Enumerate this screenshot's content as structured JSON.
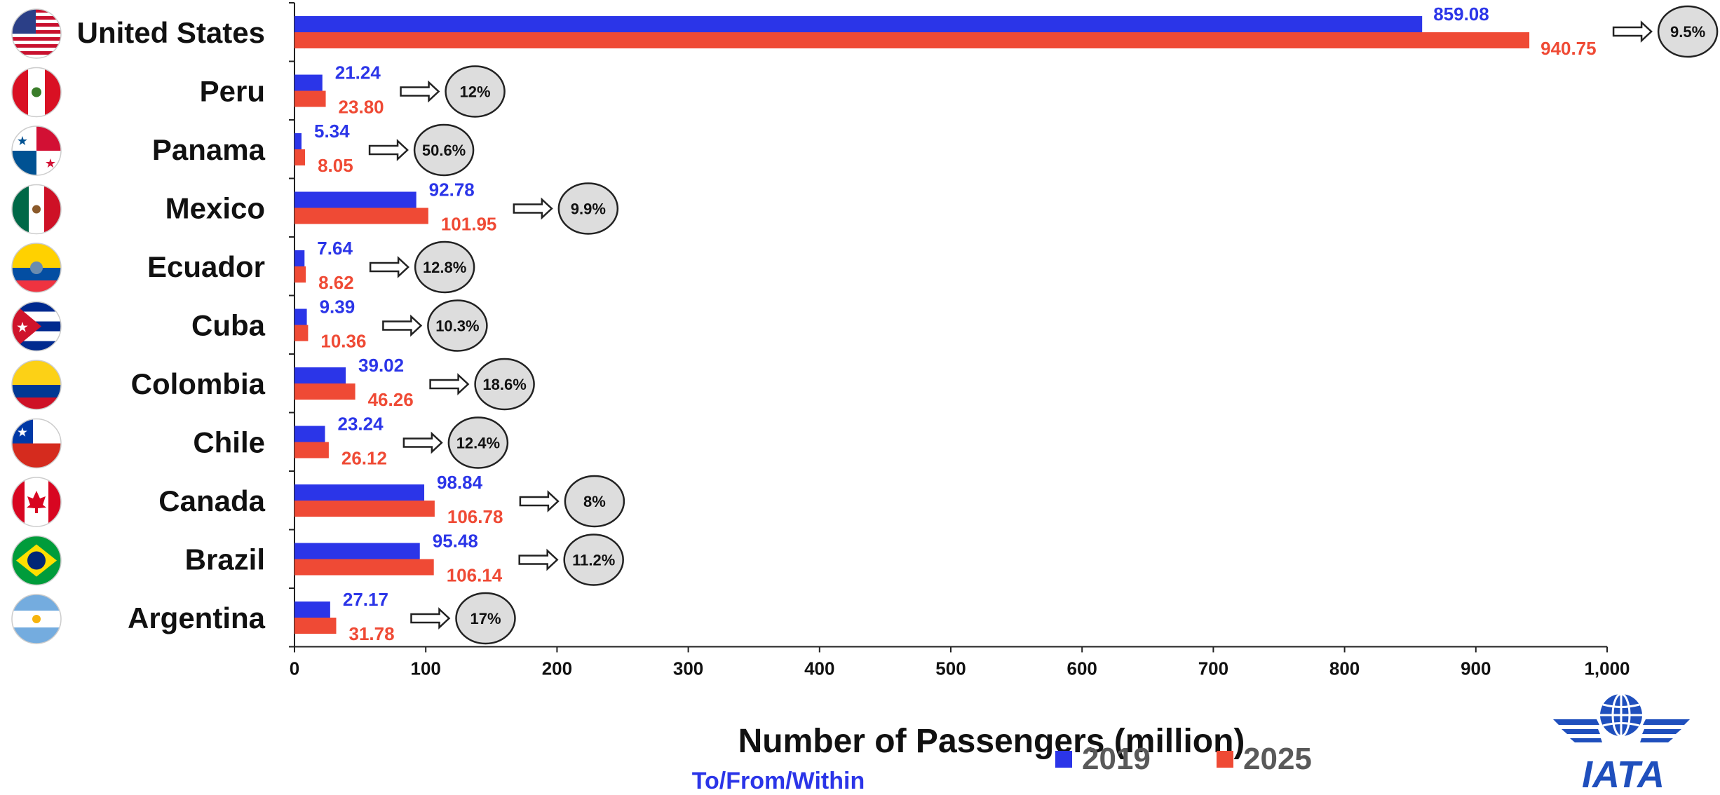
{
  "chart_data": {
    "type": "bar",
    "orientation": "horizontal",
    "categories": [
      "United States",
      "Peru",
      "Panama",
      "Mexico",
      "Ecuador",
      "Cuba",
      "Colombia",
      "Chile",
      "Canada",
      "Brazil",
      "Argentina"
    ],
    "series": [
      {
        "name": "2019",
        "color": "#2b35e8",
        "values": [
          859.08,
          21.24,
          5.34,
          92.78,
          7.64,
          9.39,
          39.02,
          23.24,
          98.84,
          95.48,
          27.17
        ]
      },
      {
        "name": "2025",
        "color": "#ef4a35",
        "values": [
          940.75,
          23.8,
          8.05,
          101.95,
          8.62,
          10.36,
          46.26,
          26.12,
          106.78,
          106.14,
          31.78
        ]
      }
    ],
    "value_labels": {
      "2019": [
        "859.08",
        "21.24",
        "5.34",
        "92.78",
        "7.64",
        "9.39",
        "39.02",
        "23.24",
        "98.84",
        "95.48",
        "27.17"
      ],
      "2025": [
        "940.75",
        "23.80",
        "8.05",
        "101.95",
        "8.62",
        "10.36",
        "46.26",
        "26.12",
        "106.78",
        "106.14",
        "31.78"
      ]
    },
    "growth_labels": [
      "9.5%",
      "12%",
      "50.6%",
      "9.9%",
      "12.8%",
      "10.3%",
      "18.6%",
      "12.4%",
      "8%",
      "11.2%",
      "17%"
    ],
    "xlim": [
      0,
      1000
    ],
    "xticks": [
      0,
      100,
      200,
      300,
      400,
      500,
      600,
      700,
      800,
      900,
      1000
    ],
    "xtick_labels": [
      "0",
      "100",
      "200",
      "300",
      "400",
      "500",
      "600",
      "700",
      "800",
      "900",
      "1,000"
    ],
    "xlabel": "Number of Passengers (million)",
    "subtitle": "To/From/Within",
    "legend_position": "bottom",
    "grid": false,
    "flag_icons": [
      "united-states-flag-icon",
      "peru-flag-icon",
      "panama-flag-icon",
      "mexico-flag-icon",
      "ecuador-flag-icon",
      "cuba-flag-icon",
      "colombia-flag-icon",
      "chile-flag-icon",
      "canada-flag-icon",
      "brazil-flag-icon",
      "argentina-flag-icon"
    ]
  },
  "legend": {
    "item_2019": "2019",
    "item_2025": "2025",
    "color_2019": "#2b35e8",
    "color_2025": "#ef4a35"
  },
  "logo": {
    "text": "IATA",
    "icon": "iata-globe-logo-icon",
    "color": "#1f4fbd"
  }
}
